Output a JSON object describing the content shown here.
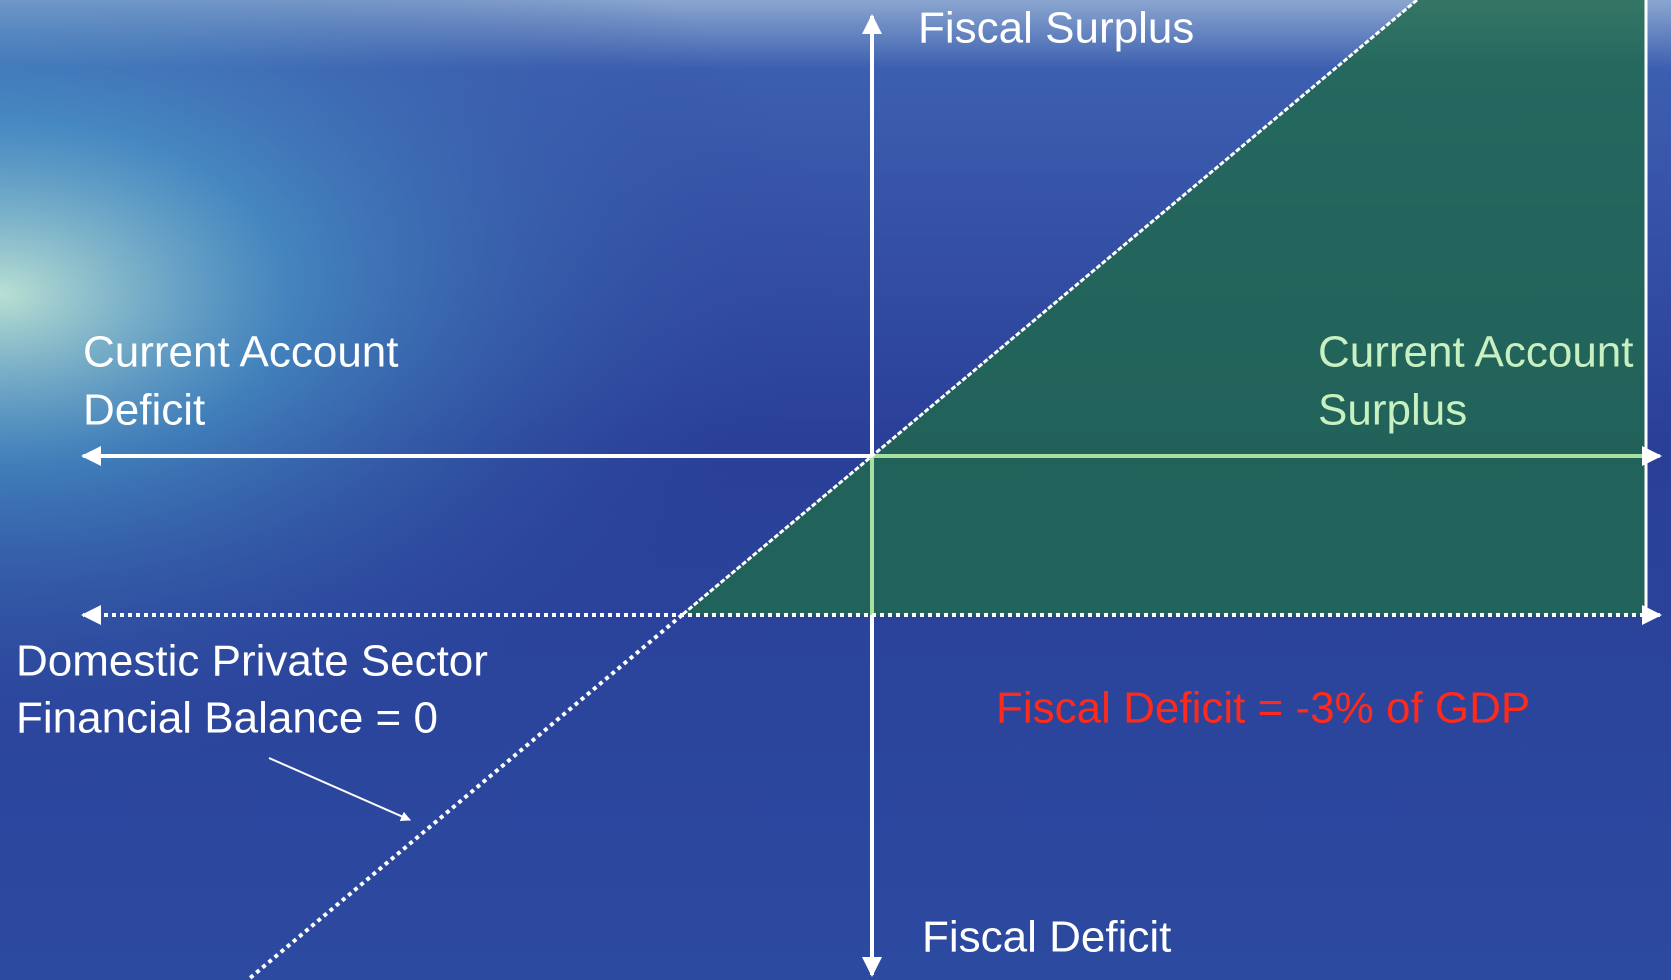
{
  "axes": {
    "top": "Fiscal Surplus",
    "bottom": "Fiscal Deficit",
    "left": [
      "Current Account",
      "Deficit"
    ],
    "right": [
      "Current Account",
      "Surplus"
    ]
  },
  "sector_line": {
    "label": [
      "Domestic Private Sector",
      "Financial Balance = 0"
    ]
  },
  "fiscal_line": {
    "label": "Fiscal Deficit = -3% of GDP"
  }
}
